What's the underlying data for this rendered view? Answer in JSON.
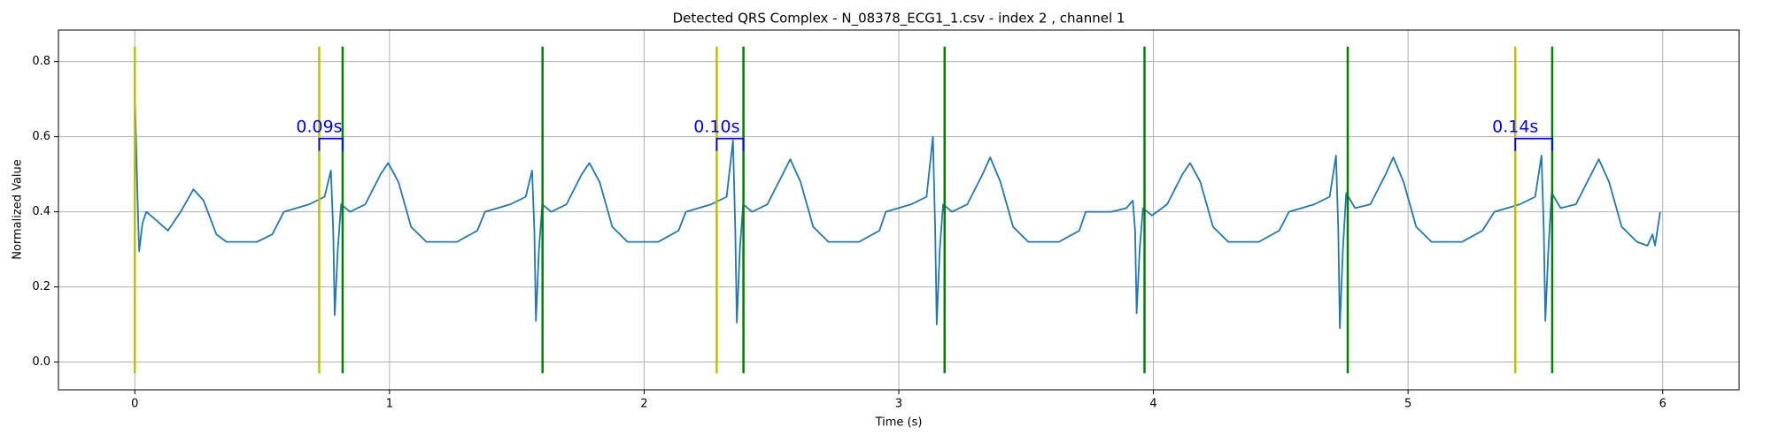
{
  "chart_data": {
    "type": "line",
    "title": "Detected QRS Complex - N_08378_ECG1_1.csv - index 2 , channel 1",
    "xlabel": "Time (s)",
    "ylabel": "Normalized Value",
    "xlim": [
      -0.3,
      6.3
    ],
    "xticks": [
      0,
      1,
      2,
      3,
      4,
      5,
      6
    ],
    "ylim": [
      -0.074,
      0.884
    ],
    "yticks": [
      {
        "value": 0,
        "label": "0.0"
      },
      0.2,
      0.4,
      0.6,
      0.8
    ],
    "grid": true,
    "series": [
      {
        "color": "#1f77b4",
        "x": [
          0,
          0.01,
          0.017,
          0.03,
          0.045,
          0.08,
          0.13,
          0.18,
          0.23,
          0.27,
          0.32,
          0.36,
          0.48,
          0.54,
          0.585,
          0.685,
          0.745,
          0.77,
          0.779,
          0.785,
          0.797,
          0.81,
          0.845,
          0.905,
          0.965,
          0.995,
          1.035,
          1.085,
          1.145,
          1.265,
          1.345,
          1.375,
          1.475,
          1.535,
          1.56,
          1.569,
          1.575,
          1.587,
          1.6,
          1.635,
          1.695,
          1.755,
          1.785,
          1.825,
          1.875,
          1.935,
          2.055,
          2.135,
          2.164,
          2.264,
          2.324,
          2.349,
          2.358,
          2.364,
          2.376,
          2.389,
          2.424,
          2.484,
          2.544,
          2.574,
          2.614,
          2.664,
          2.724,
          2.844,
          2.924,
          2.949,
          3.049,
          3.109,
          3.134,
          3.143,
          3.149,
          3.161,
          3.174,
          3.209,
          3.269,
          3.329,
          3.359,
          3.399,
          3.449,
          3.509,
          3.629,
          3.709,
          3.734,
          3.834,
          3.894,
          3.919,
          3.928,
          3.934,
          3.946,
          3.959,
          3.994,
          4.054,
          4.114,
          4.144,
          4.184,
          4.234,
          4.294,
          4.414,
          4.494,
          4.532,
          4.632,
          4.692,
          4.717,
          4.726,
          4.732,
          4.744,
          4.757,
          4.792,
          4.852,
          4.912,
          4.942,
          4.982,
          5.032,
          5.092,
          5.212,
          5.292,
          5.339,
          5.439,
          5.499,
          5.524,
          5.533,
          5.539,
          5.551,
          5.564,
          5.599,
          5.659,
          5.719,
          5.749,
          5.789,
          5.839,
          5.899,
          5.94,
          5.96,
          5.97,
          5.99
        ],
        "values": [
          0.72,
          0.45,
          0.295,
          0.37,
          0.4,
          0.38,
          0.35,
          0.4,
          0.46,
          0.43,
          0.34,
          0.32,
          0.32,
          0.34,
          0.4,
          0.42,
          0.44,
          0.51,
          0.35,
          0.125,
          0.3,
          0.42,
          0.4,
          0.42,
          0.5,
          0.53,
          0.48,
          0.36,
          0.32,
          0.32,
          0.35,
          0.4,
          0.42,
          0.44,
          0.51,
          0.35,
          0.11,
          0.3,
          0.42,
          0.4,
          0.42,
          0.5,
          0.53,
          0.48,
          0.36,
          0.32,
          0.32,
          0.35,
          0.4,
          0.42,
          0.44,
          0.59,
          0.35,
          0.105,
          0.3,
          0.42,
          0.4,
          0.42,
          0.5,
          0.54,
          0.48,
          0.36,
          0.32,
          0.32,
          0.35,
          0.4,
          0.42,
          0.44,
          0.6,
          0.35,
          0.1,
          0.3,
          0.42,
          0.4,
          0.42,
          0.5,
          0.545,
          0.48,
          0.36,
          0.32,
          0.32,
          0.35,
          0.4,
          0.4,
          0.41,
          0.43,
          0.35,
          0.13,
          0.3,
          0.41,
          0.39,
          0.42,
          0.5,
          0.53,
          0.48,
          0.36,
          0.32,
          0.32,
          0.35,
          0.4,
          0.42,
          0.44,
          0.55,
          0.35,
          0.09,
          0.3,
          0.45,
          0.41,
          0.42,
          0.5,
          0.545,
          0.48,
          0.36,
          0.32,
          0.32,
          0.35,
          0.4,
          0.42,
          0.44,
          0.55,
          0.35,
          0.11,
          0.3,
          0.45,
          0.41,
          0.42,
          0.5,
          0.54,
          0.48,
          0.36,
          0.32,
          0.31,
          0.34,
          0.31,
          0.4
        ]
      }
    ],
    "vlines": [
      {
        "color": "#bfbf00",
        "x": [
          0,
          0.724,
          2.285,
          5.421
        ],
        "ymin": -0.03,
        "ymax": 0.84
      },
      {
        "color": "#008000",
        "x": [
          0.816,
          1.601,
          2.39,
          3.18,
          3.965,
          4.763,
          5.566
        ],
        "ymin": -0.03,
        "ymax": 0.84
      }
    ],
    "annotations": [
      {
        "text": "0.09s",
        "x0": 0.724,
        "x1": 0.816,
        "y": 0.595
      },
      {
        "text": "0.10s",
        "x0": 2.285,
        "x1": 2.39,
        "y": 0.595
      },
      {
        "text": "0.14s",
        "x0": 5.421,
        "x1": 5.566,
        "y": 0.595
      }
    ],
    "annotation_color": "#0000ff"
  }
}
